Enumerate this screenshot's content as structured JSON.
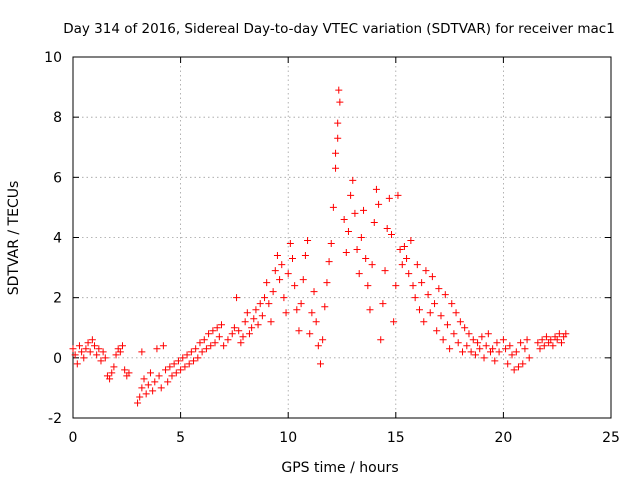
{
  "chart_data": {
    "type": "scatter",
    "title": "Day 314 of 2016, Sidereal Day-to-day VTEC variation (SDTVAR) for receiver mac1",
    "xlabel": "GPS time / hours",
    "ylabel": "SDTVAR / TECUs",
    "xlim": [
      0,
      25
    ],
    "ylim": [
      -2,
      10
    ],
    "xticks": [
      0,
      5,
      10,
      15,
      20,
      25
    ],
    "yticks": [
      -2,
      0,
      2,
      4,
      6,
      8,
      10
    ],
    "grid": true,
    "marker": "+",
    "color": "#ff0000",
    "series": [
      {
        "name": "SDTVAR",
        "points": [
          [
            0.0,
            0.3
          ],
          [
            0.1,
            0.1
          ],
          [
            0.2,
            -0.2
          ],
          [
            0.3,
            0.4
          ],
          [
            0.4,
            0.2
          ],
          [
            0.5,
            0.0
          ],
          [
            0.6,
            0.3
          ],
          [
            0.7,
            0.5
          ],
          [
            0.8,
            0.2
          ],
          [
            0.9,
            0.6
          ],
          [
            1.0,
            0.4
          ],
          [
            1.1,
            0.1
          ],
          [
            1.2,
            0.3
          ],
          [
            1.3,
            -0.1
          ],
          [
            1.4,
            0.2
          ],
          [
            1.5,
            0.0
          ],
          [
            1.6,
            -0.6
          ],
          [
            1.7,
            -0.7
          ],
          [
            1.8,
            -0.5
          ],
          [
            1.9,
            -0.3
          ],
          [
            2.0,
            0.1
          ],
          [
            2.1,
            0.3
          ],
          [
            2.2,
            0.2
          ],
          [
            2.3,
            0.4
          ],
          [
            2.4,
            -0.4
          ],
          [
            2.5,
            -0.6
          ],
          [
            2.6,
            -0.5
          ],
          [
            3.0,
            -1.5
          ],
          [
            3.1,
            -1.3
          ],
          [
            3.2,
            -1.0
          ],
          [
            3.2,
            0.2
          ],
          [
            3.3,
            -0.7
          ],
          [
            3.4,
            -1.2
          ],
          [
            3.5,
            -0.9
          ],
          [
            3.6,
            -0.5
          ],
          [
            3.7,
            -1.1
          ],
          [
            3.8,
            -0.8
          ],
          [
            3.9,
            0.3
          ],
          [
            4.0,
            -0.6
          ],
          [
            4.1,
            -1.0
          ],
          [
            4.2,
            0.4
          ],
          [
            4.3,
            -0.4
          ],
          [
            4.4,
            -0.8
          ],
          [
            4.5,
            -0.3
          ],
          [
            4.6,
            -0.6
          ],
          [
            4.7,
            -0.2
          ],
          [
            4.8,
            -0.5
          ],
          [
            4.9,
            -0.1
          ],
          [
            5.0,
            -0.4
          ],
          [
            5.1,
            0.0
          ],
          [
            5.2,
            -0.3
          ],
          [
            5.3,
            0.1
          ],
          [
            5.4,
            -0.2
          ],
          [
            5.5,
            0.2
          ],
          [
            5.6,
            -0.1
          ],
          [
            5.7,
            0.3
          ],
          [
            5.8,
            0.0
          ],
          [
            5.9,
            0.5
          ],
          [
            6.0,
            0.2
          ],
          [
            6.1,
            0.6
          ],
          [
            6.2,
            0.3
          ],
          [
            6.3,
            0.8
          ],
          [
            6.4,
            0.4
          ],
          [
            6.5,
            0.9
          ],
          [
            6.6,
            0.5
          ],
          [
            6.7,
            1.0
          ],
          [
            6.8,
            0.7
          ],
          [
            6.9,
            1.1
          ],
          [
            7.0,
            0.4
          ],
          [
            7.2,
            0.6
          ],
          [
            7.4,
            0.8
          ],
          [
            7.5,
            1.0
          ],
          [
            7.6,
            2.0
          ],
          [
            7.7,
            0.9
          ],
          [
            7.8,
            0.5
          ],
          [
            7.9,
            0.7
          ],
          [
            8.0,
            1.2
          ],
          [
            8.1,
            1.5
          ],
          [
            8.2,
            0.8
          ],
          [
            8.3,
            1.0
          ],
          [
            8.4,
            1.3
          ],
          [
            8.5,
            1.6
          ],
          [
            8.6,
            1.1
          ],
          [
            8.7,
            1.8
          ],
          [
            8.8,
            1.4
          ],
          [
            8.9,
            2.0
          ],
          [
            9.0,
            2.5
          ],
          [
            9.1,
            1.8
          ],
          [
            9.2,
            1.2
          ],
          [
            9.3,
            2.2
          ],
          [
            9.4,
            2.9
          ],
          [
            9.5,
            3.4
          ],
          [
            9.6,
            2.6
          ],
          [
            9.7,
            3.1
          ],
          [
            9.8,
            2.0
          ],
          [
            9.9,
            1.5
          ],
          [
            10.0,
            2.8
          ],
          [
            10.1,
            3.8
          ],
          [
            10.2,
            3.3
          ],
          [
            10.3,
            2.4
          ],
          [
            10.4,
            1.6
          ],
          [
            10.5,
            0.9
          ],
          [
            10.6,
            1.8
          ],
          [
            10.7,
            2.6
          ],
          [
            10.8,
            3.4
          ],
          [
            10.9,
            3.9
          ],
          [
            11.0,
            0.8
          ],
          [
            11.1,
            1.5
          ],
          [
            11.2,
            2.2
          ],
          [
            11.3,
            1.2
          ],
          [
            11.4,
            0.4
          ],
          [
            11.5,
            -0.2
          ],
          [
            11.6,
            0.6
          ],
          [
            11.7,
            1.7
          ],
          [
            11.8,
            2.5
          ],
          [
            11.9,
            3.2
          ],
          [
            12.0,
            3.8
          ],
          [
            12.1,
            5.0
          ],
          [
            12.2,
            6.3
          ],
          [
            12.3,
            7.8
          ],
          [
            12.35,
            8.9
          ],
          [
            12.4,
            8.5
          ],
          [
            12.3,
            7.3
          ],
          [
            12.2,
            6.8
          ],
          [
            12.6,
            4.6
          ],
          [
            12.7,
            3.5
          ],
          [
            12.8,
            4.2
          ],
          [
            12.9,
            5.4
          ],
          [
            13.0,
            5.9
          ],
          [
            13.1,
            4.8
          ],
          [
            13.2,
            3.6
          ],
          [
            13.3,
            2.8
          ],
          [
            13.4,
            4.0
          ],
          [
            13.5,
            4.9
          ],
          [
            13.6,
            3.3
          ],
          [
            13.7,
            2.4
          ],
          [
            13.8,
            1.6
          ],
          [
            13.9,
            3.1
          ],
          [
            14.0,
            4.5
          ],
          [
            14.1,
            5.6
          ],
          [
            14.2,
            5.1
          ],
          [
            14.3,
            0.6
          ],
          [
            14.4,
            1.8
          ],
          [
            14.5,
            2.9
          ],
          [
            14.6,
            4.3
          ],
          [
            14.7,
            5.3
          ],
          [
            14.8,
            4.1
          ],
          [
            14.9,
            1.2
          ],
          [
            15.0,
            2.4
          ],
          [
            15.1,
            5.4
          ],
          [
            15.2,
            3.6
          ],
          [
            15.3,
            3.1
          ],
          [
            15.4,
            3.7
          ],
          [
            15.5,
            3.3
          ],
          [
            15.6,
            2.8
          ],
          [
            15.7,
            3.9
          ],
          [
            15.8,
            2.4
          ],
          [
            15.9,
            2.0
          ],
          [
            16.0,
            3.1
          ],
          [
            16.1,
            1.6
          ],
          [
            16.2,
            2.5
          ],
          [
            16.3,
            1.2
          ],
          [
            16.4,
            2.9
          ],
          [
            16.5,
            2.1
          ],
          [
            16.6,
            1.5
          ],
          [
            16.7,
            2.7
          ],
          [
            16.8,
            1.8
          ],
          [
            16.9,
            0.9
          ],
          [
            17.0,
            2.3
          ],
          [
            17.1,
            1.4
          ],
          [
            17.2,
            0.6
          ],
          [
            17.3,
            2.1
          ],
          [
            17.4,
            1.1
          ],
          [
            17.5,
            0.3
          ],
          [
            17.6,
            1.8
          ],
          [
            17.7,
            0.8
          ],
          [
            17.8,
            1.5
          ],
          [
            17.9,
            0.5
          ],
          [
            18.0,
            1.2
          ],
          [
            18.1,
            0.2
          ],
          [
            18.2,
            1.0
          ],
          [
            18.3,
            0.4
          ],
          [
            18.4,
            0.8
          ],
          [
            18.5,
            0.2
          ],
          [
            18.6,
            0.6
          ],
          [
            18.7,
            0.1
          ],
          [
            18.8,
            0.5
          ],
          [
            18.9,
            0.3
          ],
          [
            19.0,
            0.7
          ],
          [
            19.1,
            0.0
          ],
          [
            19.2,
            0.4
          ],
          [
            19.3,
            0.8
          ],
          [
            19.4,
            0.2
          ],
          [
            19.5,
            0.3
          ],
          [
            19.6,
            -0.1
          ],
          [
            19.7,
            0.5
          ],
          [
            19.8,
            0.2
          ],
          [
            20.0,
            0.6
          ],
          [
            20.1,
            0.3
          ],
          [
            20.2,
            -0.2
          ],
          [
            20.3,
            0.4
          ],
          [
            20.4,
            0.1
          ],
          [
            20.5,
            -0.4
          ],
          [
            20.6,
            0.2
          ],
          [
            20.7,
            -0.3
          ],
          [
            20.8,
            0.5
          ],
          [
            20.9,
            -0.2
          ],
          [
            21.0,
            0.3
          ],
          [
            21.1,
            0.6
          ],
          [
            21.2,
            0.0
          ],
          [
            21.6,
            0.5
          ],
          [
            21.7,
            0.3
          ],
          [
            21.8,
            0.6
          ],
          [
            21.9,
            0.4
          ],
          [
            22.0,
            0.7
          ],
          [
            22.1,
            0.5
          ],
          [
            22.2,
            0.6
          ],
          [
            22.3,
            0.4
          ],
          [
            22.4,
            0.7
          ],
          [
            22.5,
            0.6
          ],
          [
            22.6,
            0.8
          ],
          [
            22.7,
            0.5
          ],
          [
            22.8,
            0.7
          ],
          [
            22.9,
            0.8
          ]
        ]
      }
    ]
  }
}
